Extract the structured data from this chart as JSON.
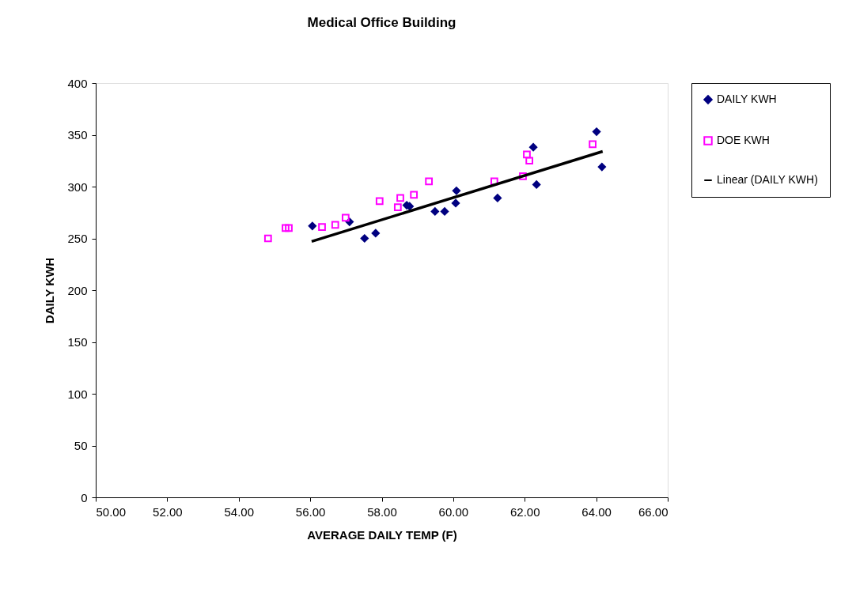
{
  "chart_data": {
    "type": "scatter",
    "title": "Medical Office Building",
    "xlabel": "AVERAGE DAILY TEMP (F)",
    "ylabel": "DAILY KWH",
    "series": [
      {
        "name": "DAILY KWH",
        "marker": "diamond",
        "color": "#000080",
        "x": [
          56.06,
          57.1,
          57.52,
          57.83,
          58.7,
          58.78,
          59.49,
          59.76,
          60.07,
          60.09,
          61.24,
          62.24,
          62.33,
          64.01,
          64.16
        ],
        "values": [
          262,
          266,
          250,
          255,
          282,
          281,
          276,
          276,
          284,
          296,
          289,
          338,
          302,
          353,
          319
        ]
      },
      {
        "name": "DOE KWH",
        "marker": "square",
        "color": "#ff00ff",
        "x": [
          54.82,
          55.31,
          55.4,
          56.33,
          56.7,
          56.99,
          57.94,
          58.45,
          58.52,
          58.9,
          59.32,
          61.15,
          61.95,
          62.06,
          62.13,
          63.9
        ],
        "values": [
          250,
          260,
          260,
          261,
          263,
          270,
          286,
          280,
          289,
          292,
          305,
          305,
          310,
          331,
          325,
          341
        ]
      },
      {
        "name": "Linear (DAILY KWH)",
        "type": "line",
        "marker": "none",
        "line_style": "solid",
        "color": "#000000",
        "x": [
          56.04,
          64.18
        ],
        "values": [
          247,
          334
        ]
      }
    ],
    "xlim": [
      50,
      66
    ],
    "xticks": [
      {
        "value": 50,
        "label": "50.00"
      },
      {
        "value": 52,
        "label": "52.00"
      },
      {
        "value": 54,
        "label": "54.00"
      },
      {
        "value": 56,
        "label": "56.00"
      },
      {
        "value": 58,
        "label": "58.00"
      },
      {
        "value": 60,
        "label": "60.00"
      },
      {
        "value": 62,
        "label": "62.00"
      },
      {
        "value": 64,
        "label": "64.00"
      },
      {
        "value": 66,
        "label": "66.00"
      }
    ],
    "ylim": [
      0,
      400
    ],
    "yticks": [
      0,
      50,
      100,
      150,
      200,
      250,
      300,
      350,
      400
    ],
    "grid": false,
    "legend": "right"
  }
}
